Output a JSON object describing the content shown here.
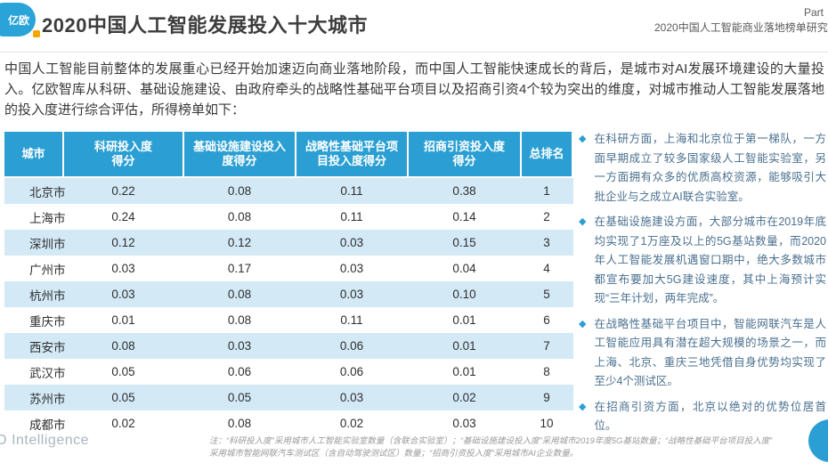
{
  "header": {
    "logo_text": "亿欧",
    "title": "2020中国人工智能发展投入十大城市",
    "part_label": "Part",
    "report_name": "2020中国人工智能商业落地榜单研究"
  },
  "intro": "中国人工智能目前整体的发展重心已经开始加速迈向商业落地阶段，而中国人工智能快速成长的背后，是城市对AI发展环境建设的大量投入。亿欧智库从科研、基础设施建设、由政府牵头的战略性基础平台项目以及招商引资4个较为突出的维度，对城市推动人工智能发展落地的投入度进行综合评估，所得榜单如下：",
  "table": {
    "columns": [
      "城市",
      "科研投入度\n得分",
      "基础设施建设投入\n度得分",
      "战略性基础平台项\n目投入度得分",
      "招商引资投入度\n得分",
      "总排名"
    ],
    "rows": [
      [
        "北京市",
        "0.22",
        "0.08",
        "0.11",
        "0.38",
        "1"
      ],
      [
        "上海市",
        "0.24",
        "0.08",
        "0.11",
        "0.14",
        "2"
      ],
      [
        "深圳市",
        "0.12",
        "0.12",
        "0.03",
        "0.15",
        "3"
      ],
      [
        "广州市",
        "0.03",
        "0.17",
        "0.03",
        "0.04",
        "4"
      ],
      [
        "杭州市",
        "0.03",
        "0.08",
        "0.03",
        "0.10",
        "5"
      ],
      [
        "重庆市",
        "0.01",
        "0.08",
        "0.11",
        "0.01",
        "6"
      ],
      [
        "西安市",
        "0.08",
        "0.03",
        "0.06",
        "0.01",
        "7"
      ],
      [
        "武汉市",
        "0.05",
        "0.06",
        "0.06",
        "0.01",
        "8"
      ],
      [
        "苏州市",
        "0.05",
        "0.05",
        "0.03",
        "0.02",
        "9"
      ],
      [
        "成都市",
        "0.02",
        "0.08",
        "0.02",
        "0.03",
        "10"
      ]
    ]
  },
  "bullets": [
    "在科研方面，上海和北京位于第一梯队，一方面早期成立了较多国家级人工智能实验室，另一方面拥有众多的优质高校资源，能够吸引大批企业与之成立AI联合实验室。",
    "在基础设施建设方面，大部分城市在2019年底均实现了1万座及以上的5G基站数量，而2020年人工智能发展机遇窗口期中，绝大多数城市都宣布要加大5G建设速度，其中上海预计实现“三年计划，两年完成”。",
    "在战略性基础平台项目中，智能网联汽车是人工智能应用具有潜在超大规模的场景之一，而上海、北京、重庆三地凭借自身优势均实现了至少4个测试区。",
    "在招商引资方面，北京以绝对的优势位居首位。"
  ],
  "footer": {
    "brand": "EO Intelligence",
    "note_line1": "注：“科研投入度”采用城市人工智能实验室数量（含联合实验室）；“基础设施建设投入度”采用城市2019年度5G基站数量；“战略性基础平台项目投入度”",
    "note_line2": "采用城市智能网联汽车测试区（含自动驾驶测试区）数量；“招商引资投入度”采用城市AI企业数量。"
  },
  "colors": {
    "accent_blue": "#2B9FD3",
    "row_light_blue": "#D3E9F6",
    "bullet_diamond": "#2E9FD4",
    "logo_accent_orange": "#F7A600"
  }
}
